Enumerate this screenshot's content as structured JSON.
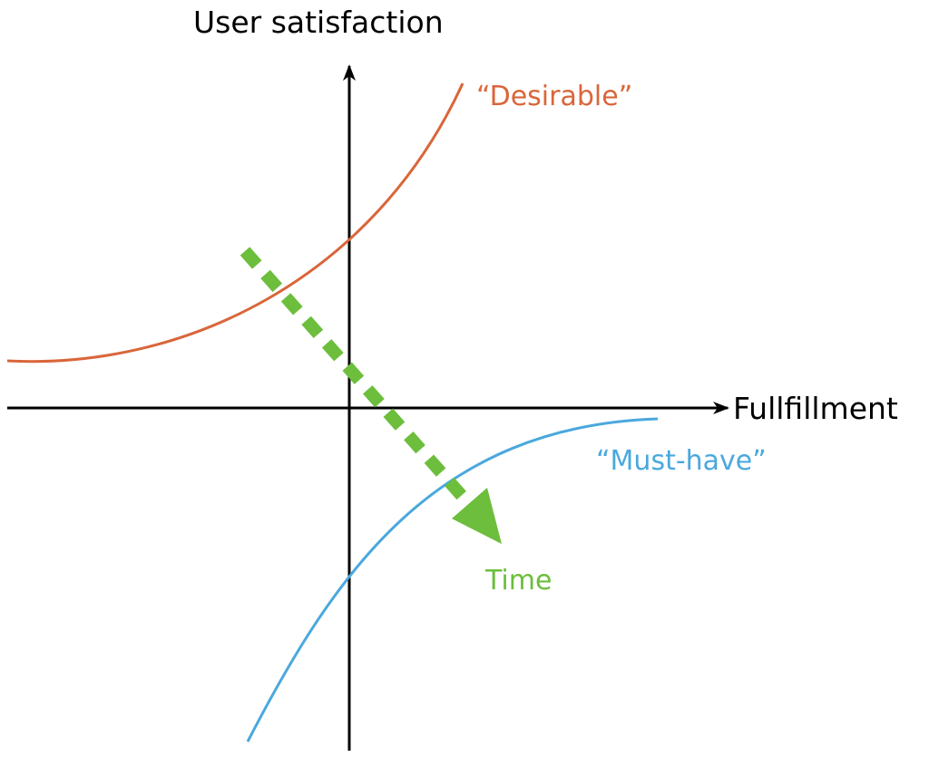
{
  "diagram": {
    "y_axis_label": "User satisfaction",
    "x_axis_label": "Fullfillment",
    "curves": {
      "desirable": {
        "label": "“Desirable”",
        "color": "#D9663A"
      },
      "must_have": {
        "label": "“Must-have”",
        "color": "#4AA8DE"
      }
    },
    "time_arrow": {
      "label": "Time",
      "color": "#6CBE3C"
    },
    "axis_color": "#000000"
  }
}
